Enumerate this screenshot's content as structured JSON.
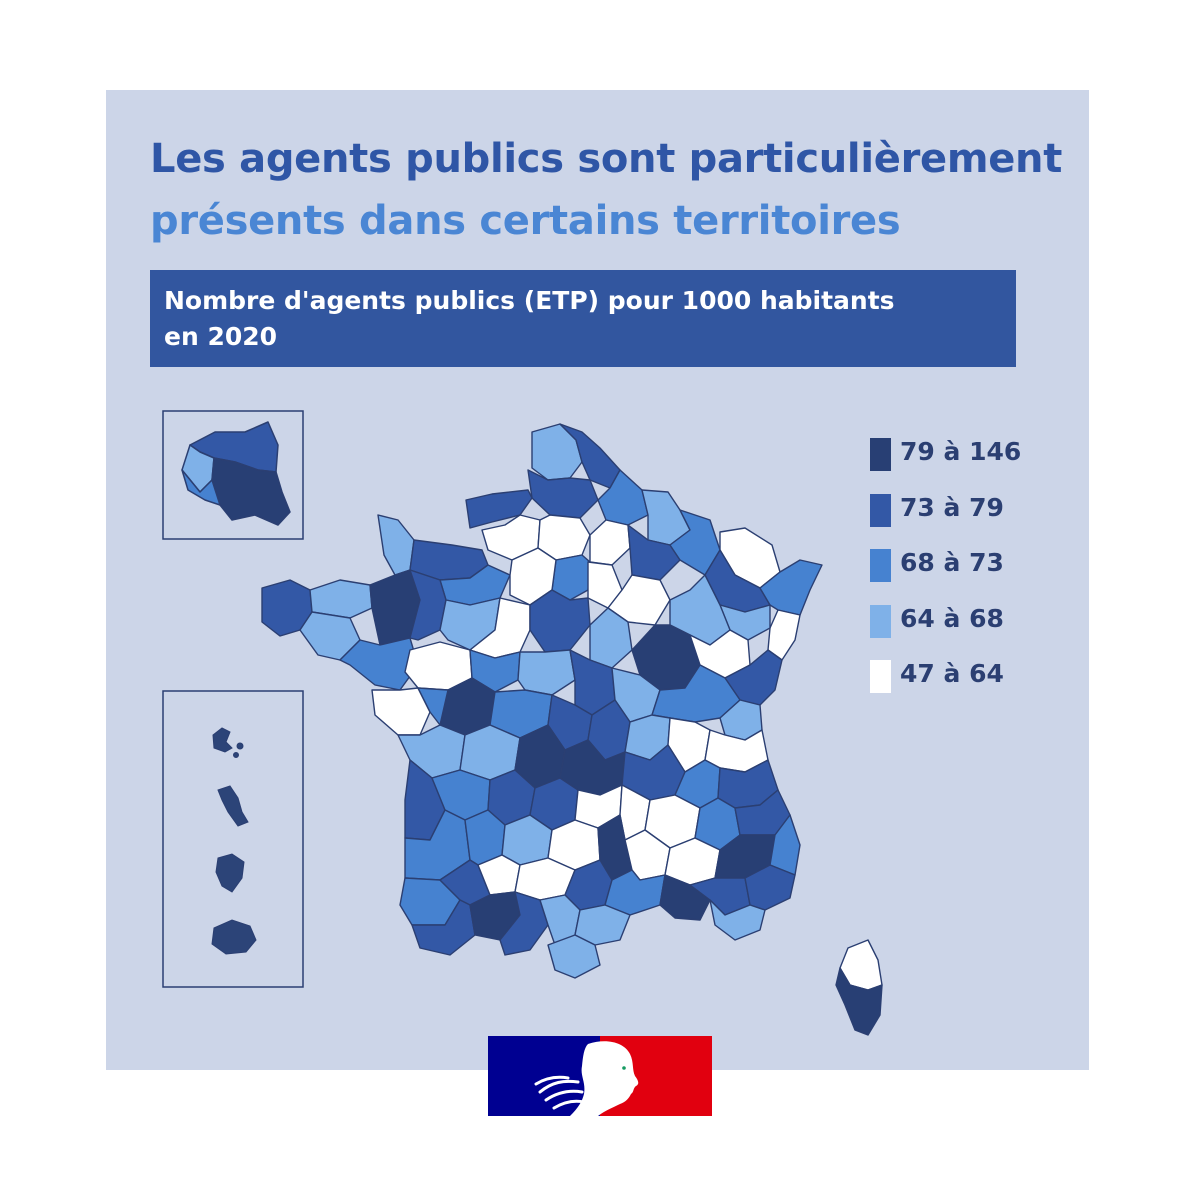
{
  "title": {
    "line1": "Les agents publics sont particulièrement",
    "line2": "présents dans certains territoires",
    "line1_color": "#2f56a6",
    "line2_color": "#4a86d4"
  },
  "subtitle": {
    "line1": "Nombre d'agents publics (ETP) pour 1000 habitants",
    "line2": "en 2020"
  },
  "legend": [
    {
      "label": "79 à 146",
      "color": "#283f74"
    },
    {
      "label": "73 à 79",
      "color": "#3358a6"
    },
    {
      "label": "68 à 73",
      "color": "#4682d0"
    },
    {
      "label": "64 à 68",
      "color": "#7fb1e8"
    },
    {
      "label": "47 à 64",
      "color": "#ffffff"
    }
  ],
  "map": {
    "region": "France",
    "insets": [
      "Île-de-France",
      "Outre-mer"
    ]
  },
  "logo": {
    "name": "marianne-logo",
    "colors": [
      "#000091",
      "#ffffff",
      "#e1000f"
    ]
  }
}
